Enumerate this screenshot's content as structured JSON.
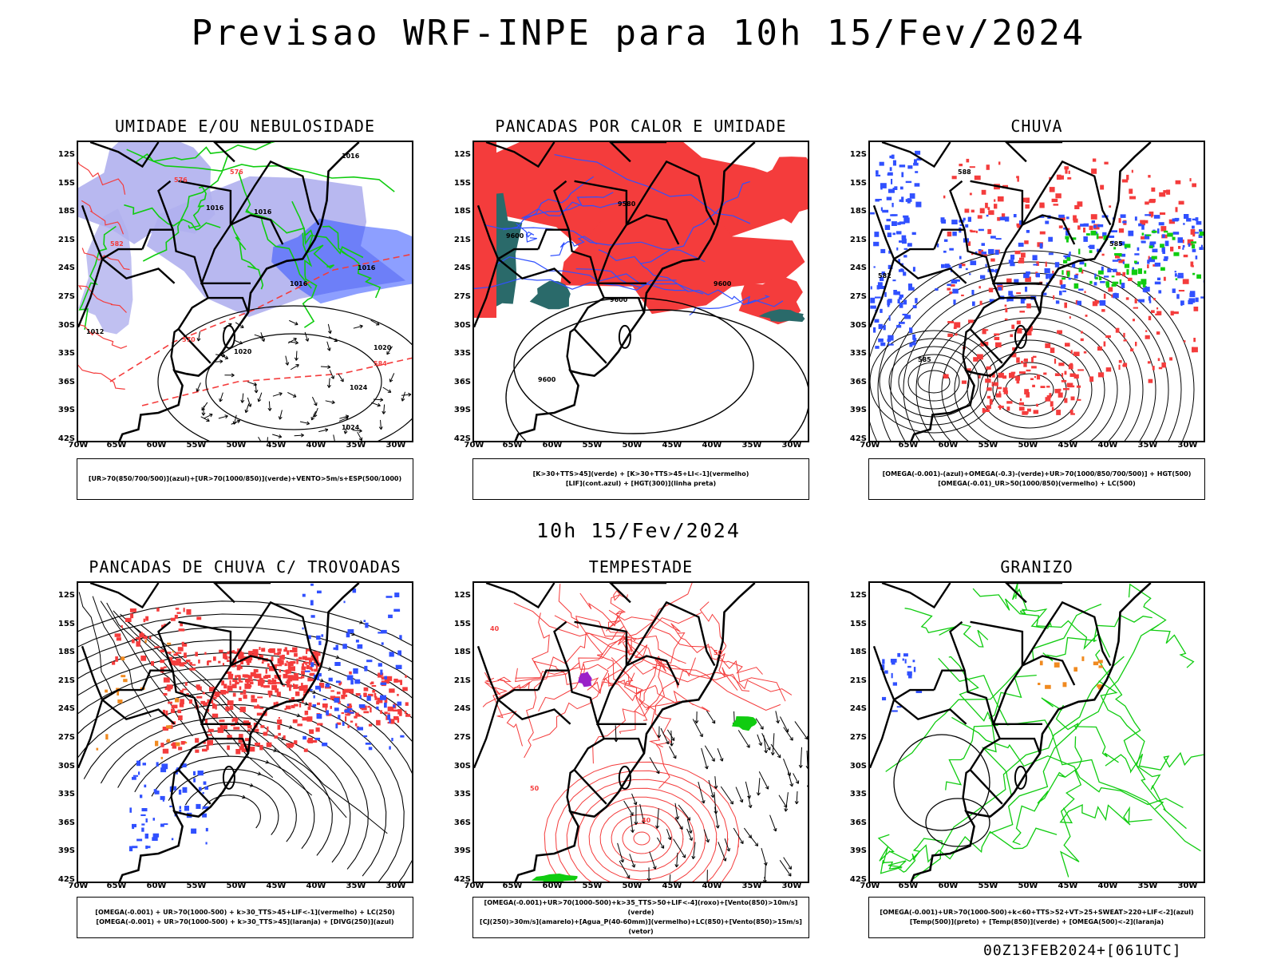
{
  "title": "Previsao WRF-INPE  para 10h 15/Fev/2024",
  "subtitle_time": "10h 15/Fev/2024",
  "run_stamp": "00Z13FEB2024+[061UTC]",
  "lat_labels": [
    "12S",
    "15S",
    "18S",
    "21S",
    "24S",
    "27S",
    "30S",
    "33S",
    "36S",
    "39S",
    "42S"
  ],
  "lon_labels": [
    "70W",
    "65W",
    "60W",
    "55W",
    "50W",
    "45W",
    "40W",
    "35W",
    "30W"
  ],
  "colors": {
    "blue": "#3050ff",
    "lavender": "#b0b0ee",
    "green": "#10cc10",
    "red": "#f43c3c",
    "teal": "#2a6a6a",
    "orange": "#f08a20",
    "purple": "#9a20c8"
  },
  "panels": [
    {
      "title": "UMIDADE E/OU NEBULOSIDADE",
      "legend": [
        "[UR>70(850/700/500)](azul)+[UR>70(1000/850)](verde)+VENTO>5m/s+ESP(500/1000)"
      ],
      "contour_labels": [
        "1016",
        "1016",
        "1016",
        "1016",
        "1020",
        "1024",
        "1024",
        "1020",
        "1016",
        "1012",
        "576",
        "576",
        "570",
        "582",
        "584"
      ]
    },
    {
      "title": "PANCADAS POR CALOR E UMIDADE",
      "legend": [
        "[K>30+TTS>45](verde) + [K>30+TTS>45+LI<-1](vermelho)",
        "[LIF](cont.azul) + [HGT(300)](linha preta)"
      ],
      "contour_labels": [
        "9600",
        "9600",
        "9600",
        "9600",
        "9600",
        "9580"
      ]
    },
    {
      "title": "CHUVA",
      "legend": [
        "[OMEGA(-0.001)-(azul)+OMEGA(-0.3)-(verde)+UR>70(1000/850/700/500)] + HGT(500)",
        "[OMEGA(-0.01)_UR>50(1000/850)(vermelho) + LC(500)"
      ],
      "contour_labels": [
        "588",
        "585",
        "582",
        "585"
      ]
    },
    {
      "title": "PANCADAS DE CHUVA C/ TROVOADAS",
      "legend": [
        "[OMEGA(-0.001) + UR>70(1000-500) + k>30_TTS>45+LIF<-1](vermelho) + LC(250)",
        "[OMEGA(-0.001) + UR>70(1000-500) + k>30_TTS>45](laranja) + [DIVG(250)](azul)"
      ],
      "contour_labels": []
    },
    {
      "title": "TEMPESTADE",
      "legend": [
        "[OMEGA(-0.001)+UR>70(1000-500)+k>35_TTS>50+LIF<-4](roxo)+[Vento(850)>10m/s](verde)",
        "[CJ(250)>30m/s](amarelo)+[Agua_P(40-60mm)](vermelho)+LC(850)+[Vento(850)>15m/s](vetor)"
      ],
      "contour_labels": [
        "40",
        "50",
        "40",
        "50"
      ]
    },
    {
      "title": "GRANIZO",
      "legend": [
        "[OMEGA(-0.001)+UR>70(1000-500)+k<60+TTS>52+VT>25+SWEAT>220+LIF<-2](azul)",
        "[Temp(500)](preto) + [Temp(850)](verde) + [OMEGA(500)<-2](laranja)"
      ],
      "contour_labels": []
    }
  ]
}
